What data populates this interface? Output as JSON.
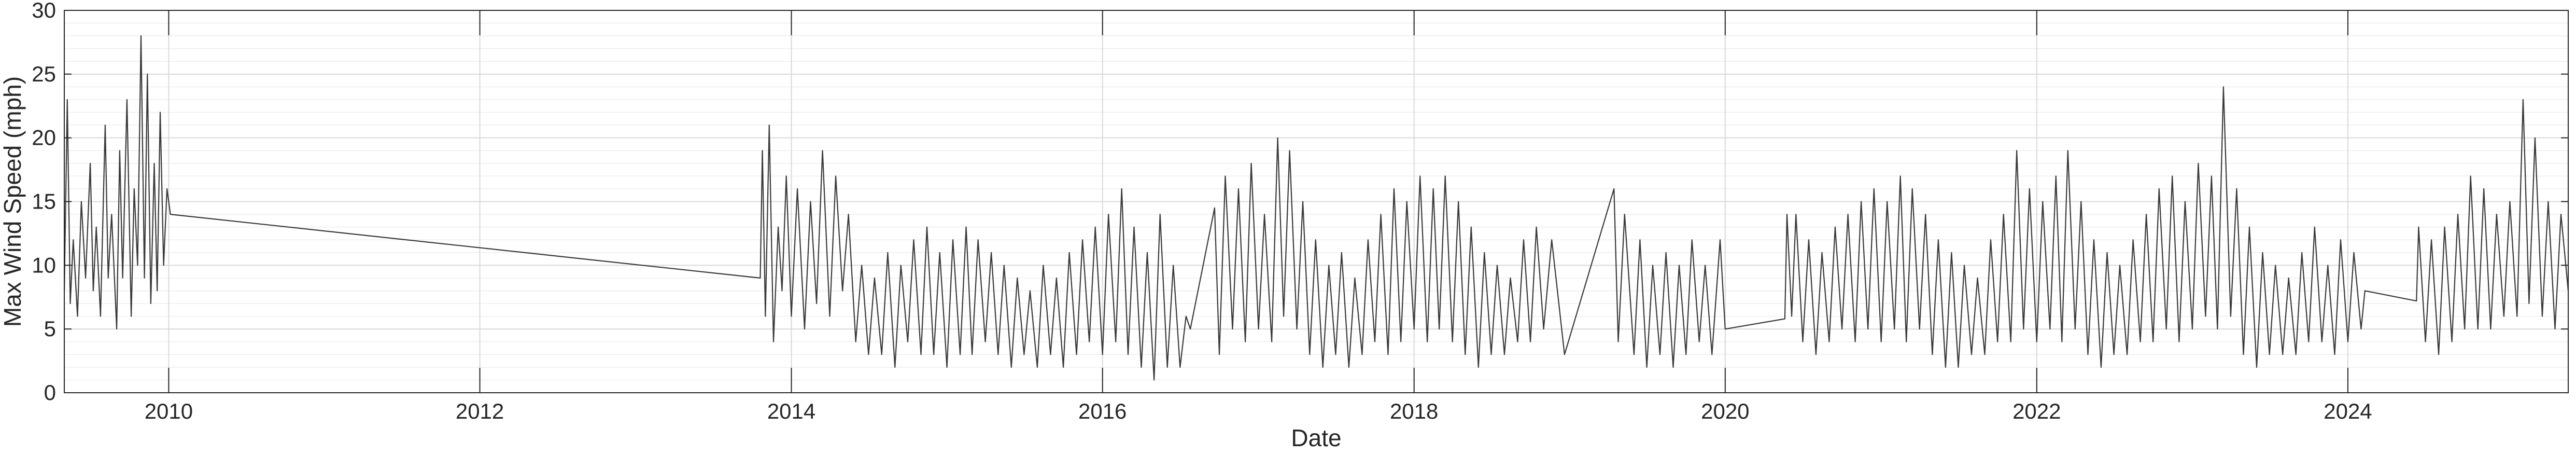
{
  "chart_data": {
    "type": "line",
    "title": "",
    "xlabel": "Date",
    "ylabel": "Max Wind Speed (mph)",
    "xlim": [
      "2009-05-01",
      "2025-06-01"
    ],
    "ylim": [
      0,
      30
    ],
    "x_ticks": [
      "2010",
      "2012",
      "2014",
      "2016",
      "2018",
      "2020",
      "2022",
      "2024"
    ],
    "y_ticks": [
      "0",
      "5",
      "10",
      "15",
      "20",
      "25",
      "30"
    ],
    "grid": true,
    "minor_grid": true,
    "line_color": "#3a3a3a",
    "series": [
      {
        "name": "",
        "points": [
          [
            "2009-05-01",
            8
          ],
          [
            "2009-05-08",
            23
          ],
          [
            "2009-05-15",
            7
          ],
          [
            "2009-05-22",
            12
          ],
          [
            "2009-06-01",
            6
          ],
          [
            "2009-06-10",
            15
          ],
          [
            "2009-06-20",
            9
          ],
          [
            "2009-07-01",
            18
          ],
          [
            "2009-07-08",
            8
          ],
          [
            "2009-07-15",
            13
          ],
          [
            "2009-07-25",
            6
          ],
          [
            "2009-08-05",
            21
          ],
          [
            "2009-08-12",
            9
          ],
          [
            "2009-08-20",
            14
          ],
          [
            "2009-09-01",
            5
          ],
          [
            "2009-09-08",
            19
          ],
          [
            "2009-09-15",
            9
          ],
          [
            "2009-09-25",
            23
          ],
          [
            "2009-10-05",
            6
          ],
          [
            "2009-10-12",
            16
          ],
          [
            "2009-10-20",
            10
          ],
          [
            "2009-10-28",
            28
          ],
          [
            "2009-11-05",
            9
          ],
          [
            "2009-11-12",
            25
          ],
          [
            "2009-11-20",
            7
          ],
          [
            "2009-11-28",
            18
          ],
          [
            "2009-12-05",
            8
          ],
          [
            "2009-12-12",
            22
          ],
          [
            "2009-12-20",
            10
          ],
          [
            "2009-12-28",
            16
          ],
          [
            "2010-01-05",
            14
          ],
          [
            "2013-10-20",
            9
          ],
          [
            "2013-10-25",
            19
          ],
          [
            "2013-11-01",
            6
          ],
          [
            "2013-11-10",
            21
          ],
          [
            "2013-11-20",
            4
          ],
          [
            "2013-12-01",
            13
          ],
          [
            "2013-12-10",
            8
          ],
          [
            "2013-12-20",
            17
          ],
          [
            "2014-01-01",
            6
          ],
          [
            "2014-01-15",
            16
          ],
          [
            "2014-02-01",
            5
          ],
          [
            "2014-02-15",
            15
          ],
          [
            "2014-03-01",
            7
          ],
          [
            "2014-03-15",
            19
          ],
          [
            "2014-04-01",
            6
          ],
          [
            "2014-04-15",
            17
          ],
          [
            "2014-05-01",
            8
          ],
          [
            "2014-05-15",
            14
          ],
          [
            "2014-06-01",
            4
          ],
          [
            "2014-06-15",
            10
          ],
          [
            "2014-07-01",
            3
          ],
          [
            "2014-07-15",
            9
          ],
          [
            "2014-08-01",
            3
          ],
          [
            "2014-08-15",
            11
          ],
          [
            "2014-09-01",
            2
          ],
          [
            "2014-09-15",
            10
          ],
          [
            "2014-10-01",
            4
          ],
          [
            "2014-10-15",
            12
          ],
          [
            "2014-11-01",
            3
          ],
          [
            "2014-11-15",
            13
          ],
          [
            "2014-12-01",
            3
          ],
          [
            "2014-12-15",
            11
          ],
          [
            "2015-01-01",
            2
          ],
          [
            "2015-01-15",
            12
          ],
          [
            "2015-02-01",
            3
          ],
          [
            "2015-02-15",
            13
          ],
          [
            "2015-03-01",
            3
          ],
          [
            "2015-03-15",
            12
          ],
          [
            "2015-04-01",
            4
          ],
          [
            "2015-04-15",
            11
          ],
          [
            "2015-05-01",
            3
          ],
          [
            "2015-05-15",
            10
          ],
          [
            "2015-06-01",
            2
          ],
          [
            "2015-06-15",
            9
          ],
          [
            "2015-07-01",
            3
          ],
          [
            "2015-07-15",
            8
          ],
          [
            "2015-08-01",
            2
          ],
          [
            "2015-08-15",
            10
          ],
          [
            "2015-09-01",
            3
          ],
          [
            "2015-09-15",
            9
          ],
          [
            "2015-10-01",
            2
          ],
          [
            "2015-10-15",
            11
          ],
          [
            "2015-11-01",
            3
          ],
          [
            "2015-11-15",
            12
          ],
          [
            "2015-12-01",
            4
          ],
          [
            "2015-12-15",
            13
          ],
          [
            "2016-01-01",
            3
          ],
          [
            "2016-01-15",
            14
          ],
          [
            "2016-02-01",
            4
          ],
          [
            "2016-02-15",
            16
          ],
          [
            "2016-03-01",
            3
          ],
          [
            "2016-03-15",
            13
          ],
          [
            "2016-04-01",
            2
          ],
          [
            "2016-04-15",
            11
          ],
          [
            "2016-05-01",
            1
          ],
          [
            "2016-05-15",
            14
          ],
          [
            "2016-06-01",
            2
          ],
          [
            "2016-06-15",
            10
          ],
          [
            "2016-07-01",
            2
          ],
          [
            "2016-07-15",
            6
          ],
          [
            "2016-07-25",
            5
          ],
          [
            "2016-09-20",
            14.5
          ],
          [
            "2016-10-01",
            3
          ],
          [
            "2016-10-15",
            17
          ],
          [
            "2016-11-01",
            5
          ],
          [
            "2016-11-15",
            16
          ],
          [
            "2016-12-01",
            4
          ],
          [
            "2016-12-15",
            18
          ],
          [
            "2017-01-01",
            5
          ],
          [
            "2017-01-15",
            14
          ],
          [
            "2017-02-01",
            4
          ],
          [
            "2017-02-15",
            20
          ],
          [
            "2017-03-01",
            6
          ],
          [
            "2017-03-15",
            19
          ],
          [
            "2017-04-01",
            5
          ],
          [
            "2017-04-15",
            15
          ],
          [
            "2017-05-01",
            3
          ],
          [
            "2017-05-15",
            12
          ],
          [
            "2017-06-01",
            2
          ],
          [
            "2017-06-15",
            10
          ],
          [
            "2017-07-01",
            3
          ],
          [
            "2017-07-15",
            11
          ],
          [
            "2017-08-01",
            2
          ],
          [
            "2017-08-15",
            9
          ],
          [
            "2017-09-01",
            3
          ],
          [
            "2017-09-15",
            12
          ],
          [
            "2017-10-01",
            4
          ],
          [
            "2017-10-15",
            14
          ],
          [
            "2017-11-01",
            3
          ],
          [
            "2017-11-15",
            16
          ],
          [
            "2017-12-01",
            4
          ],
          [
            "2017-12-15",
            15
          ],
          [
            "2018-01-01",
            5
          ],
          [
            "2018-01-15",
            17
          ],
          [
            "2018-02-01",
            4
          ],
          [
            "2018-02-15",
            16
          ],
          [
            "2018-03-01",
            5
          ],
          [
            "2018-03-15",
            17
          ],
          [
            "2018-04-01",
            4
          ],
          [
            "2018-04-15",
            15
          ],
          [
            "2018-05-01",
            3
          ],
          [
            "2018-05-15",
            13
          ],
          [
            "2018-06-01",
            2
          ],
          [
            "2018-06-15",
            11
          ],
          [
            "2018-07-01",
            3
          ],
          [
            "2018-07-15",
            10
          ],
          [
            "2018-08-01",
            3
          ],
          [
            "2018-08-15",
            9
          ],
          [
            "2018-09-01",
            4
          ],
          [
            "2018-09-15",
            12
          ],
          [
            "2018-10-01",
            4
          ],
          [
            "2018-10-15",
            13
          ],
          [
            "2018-11-01",
            5
          ],
          [
            "2018-11-20",
            12
          ],
          [
            "2018-12-20",
            3
          ],
          [
            "2019-04-15",
            16
          ],
          [
            "2019-04-25",
            4
          ],
          [
            "2019-05-10",
            14
          ],
          [
            "2019-06-01",
            3
          ],
          [
            "2019-06-15",
            12
          ],
          [
            "2019-07-01",
            2
          ],
          [
            "2019-07-15",
            10
          ],
          [
            "2019-08-01",
            3
          ],
          [
            "2019-08-15",
            11
          ],
          [
            "2019-09-01",
            2
          ],
          [
            "2019-09-15",
            10
          ],
          [
            "2019-10-01",
            3
          ],
          [
            "2019-10-15",
            12
          ],
          [
            "2019-11-01",
            4
          ],
          [
            "2019-11-15",
            10
          ],
          [
            "2019-12-01",
            3
          ],
          [
            "2019-12-20",
            12
          ],
          [
            "2020-01-01",
            5
          ],
          [
            "2020-05-20",
            5.8
          ],
          [
            "2020-05-25",
            14
          ],
          [
            "2020-06-05",
            6
          ],
          [
            "2020-06-15",
            14
          ],
          [
            "2020-07-01",
            4
          ],
          [
            "2020-07-15",
            12
          ],
          [
            "2020-08-01",
            3
          ],
          [
            "2020-08-15",
            11
          ],
          [
            "2020-09-01",
            4
          ],
          [
            "2020-09-15",
            13
          ],
          [
            "2020-10-01",
            5
          ],
          [
            "2020-10-15",
            14
          ],
          [
            "2020-11-01",
            4
          ],
          [
            "2020-11-15",
            15
          ],
          [
            "2020-12-01",
            5
          ],
          [
            "2020-12-15",
            16
          ],
          [
            "2021-01-01",
            4
          ],
          [
            "2021-01-15",
            15
          ],
          [
            "2021-02-01",
            5
          ],
          [
            "2021-02-15",
            17
          ],
          [
            "2021-03-01",
            4
          ],
          [
            "2021-03-15",
            16
          ],
          [
            "2021-04-01",
            5
          ],
          [
            "2021-04-15",
            14
          ],
          [
            "2021-05-01",
            3
          ],
          [
            "2021-05-15",
            12
          ],
          [
            "2021-06-01",
            2
          ],
          [
            "2021-06-15",
            11
          ],
          [
            "2021-07-01",
            2
          ],
          [
            "2021-07-15",
            10
          ],
          [
            "2021-08-01",
            3
          ],
          [
            "2021-08-15",
            9
          ],
          [
            "2021-09-01",
            3
          ],
          [
            "2021-09-15",
            12
          ],
          [
            "2021-10-01",
            4
          ],
          [
            "2021-10-15",
            14
          ],
          [
            "2021-11-01",
            4
          ],
          [
            "2021-11-15",
            19
          ],
          [
            "2021-12-01",
            5
          ],
          [
            "2021-12-15",
            16
          ],
          [
            "2022-01-01",
            4
          ],
          [
            "2022-01-15",
            15
          ],
          [
            "2022-02-01",
            5
          ],
          [
            "2022-02-15",
            17
          ],
          [
            "2022-03-01",
            4
          ],
          [
            "2022-03-15",
            19
          ],
          [
            "2022-04-01",
            5
          ],
          [
            "2022-04-15",
            15
          ],
          [
            "2022-05-01",
            3
          ],
          [
            "2022-05-15",
            12
          ],
          [
            "2022-06-01",
            2
          ],
          [
            "2022-06-15",
            11
          ],
          [
            "2022-07-01",
            3
          ],
          [
            "2022-07-15",
            10
          ],
          [
            "2022-08-01",
            3
          ],
          [
            "2022-08-15",
            12
          ],
          [
            "2022-09-01",
            4
          ],
          [
            "2022-09-15",
            14
          ],
          [
            "2022-10-01",
            4
          ],
          [
            "2022-10-15",
            16
          ],
          [
            "2022-11-01",
            5
          ],
          [
            "2022-11-15",
            17
          ],
          [
            "2022-12-01",
            4
          ],
          [
            "2022-12-15",
            15
          ],
          [
            "2023-01-01",
            5
          ],
          [
            "2023-01-15",
            18
          ],
          [
            "2023-02-01",
            6
          ],
          [
            "2023-02-15",
            17
          ],
          [
            "2023-03-01",
            5
          ],
          [
            "2023-03-15",
            24
          ],
          [
            "2023-04-01",
            6
          ],
          [
            "2023-04-15",
            16
          ],
          [
            "2023-05-01",
            3
          ],
          [
            "2023-05-15",
            13
          ],
          [
            "2023-06-01",
            2
          ],
          [
            "2023-06-15",
            11
          ],
          [
            "2023-07-01",
            3
          ],
          [
            "2023-07-15",
            10
          ],
          [
            "2023-08-01",
            3
          ],
          [
            "2023-08-15",
            9
          ],
          [
            "2023-09-01",
            3
          ],
          [
            "2023-09-15",
            11
          ],
          [
            "2023-10-01",
            4
          ],
          [
            "2023-10-15",
            13
          ],
          [
            "2023-11-01",
            4
          ],
          [
            "2023-11-15",
            10
          ],
          [
            "2023-12-01",
            3
          ],
          [
            "2023-12-15",
            12
          ],
          [
            "2024-01-01",
            4
          ],
          [
            "2024-01-15",
            11
          ],
          [
            "2024-02-01",
            5
          ],
          [
            "2024-02-10",
            8
          ],
          [
            "2024-06-10",
            7.2
          ],
          [
            "2024-06-15",
            13
          ],
          [
            "2024-07-01",
            4
          ],
          [
            "2024-07-15",
            12
          ],
          [
            "2024-08-01",
            3
          ],
          [
            "2024-08-15",
            13
          ],
          [
            "2024-09-01",
            4
          ],
          [
            "2024-09-15",
            14
          ],
          [
            "2024-10-01",
            5
          ],
          [
            "2024-10-15",
            17
          ],
          [
            "2024-11-01",
            5
          ],
          [
            "2024-11-15",
            16
          ],
          [
            "2024-12-01",
            5
          ],
          [
            "2024-12-15",
            14
          ],
          [
            "2025-01-01",
            6
          ],
          [
            "2025-01-15",
            15
          ],
          [
            "2025-02-01",
            6
          ],
          [
            "2025-02-15",
            23
          ],
          [
            "2025-03-01",
            7
          ],
          [
            "2025-03-15",
            20
          ],
          [
            "2025-04-01",
            6
          ],
          [
            "2025-04-15",
            15
          ],
          [
            "2025-05-01",
            5
          ],
          [
            "2025-05-15",
            14
          ],
          [
            "2025-06-01",
            8
          ]
        ]
      }
    ]
  }
}
